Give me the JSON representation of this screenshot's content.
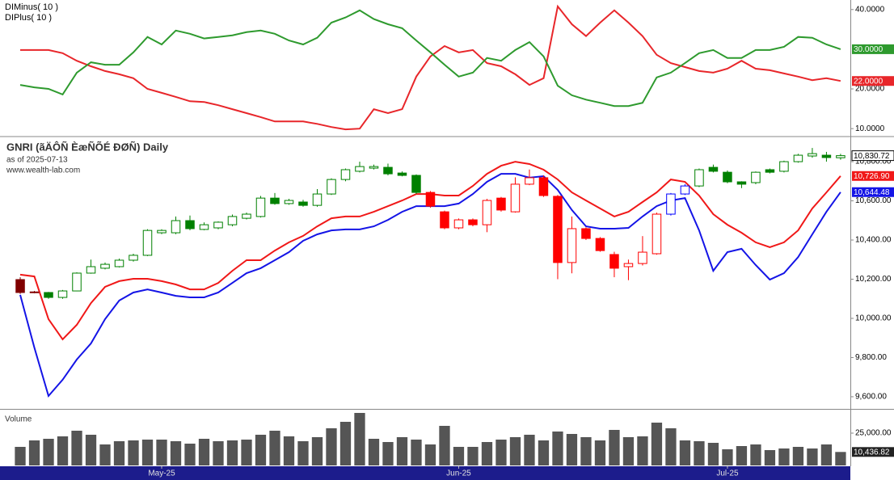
{
  "chart_data": [
    {
      "type": "line",
      "xlim": [
        -1.43,
        58.69
      ],
      "ylim": [
        8.2,
        42.4
      ],
      "yticks": [
        {
          "value": 10,
          "label": "10.0000"
        },
        {
          "value": 20,
          "label": "20.0000"
        },
        {
          "value": 40,
          "label": "40.0000"
        }
      ],
      "series": [
        {
          "name": "DIMinus( 10 )",
          "color": "#e8262a",
          "value_labels": {
            "58": "22.0000"
          },
          "values": [
            29.8,
            29.8,
            29.8,
            29.0,
            27.1,
            25.7,
            24.5,
            23.7,
            22.7,
            20.0,
            19.0,
            18.0,
            16.9,
            16.7,
            15.9,
            14.9,
            13.9,
            12.9,
            11.8,
            11.8,
            11.8,
            11.2,
            10.4,
            9.8,
            10.0,
            14.9,
            13.9,
            14.9,
            23.1,
            28.2,
            30.8,
            29.2,
            29.8,
            26.5,
            25.7,
            23.7,
            21.0,
            22.7,
            40.8,
            36.3,
            33.3,
            36.7,
            39.8,
            36.7,
            33.3,
            28.6,
            26.5,
            25.5,
            24.5,
            24.1,
            25.1,
            27.1,
            25.1,
            24.7,
            23.9,
            23.1,
            22.2,
            22.7,
            22.0
          ]
        },
        {
          "name": "DIPlus( 10 )",
          "color": "#2e9a2e",
          "value_labels": {
            "58": "30.0000"
          },
          "values": [
            21.0,
            20.4,
            20.0,
            18.6,
            24.1,
            26.7,
            26.1,
            26.1,
            29.2,
            33.1,
            31.2,
            34.7,
            33.9,
            32.7,
            33.1,
            33.5,
            34.3,
            34.7,
            33.9,
            32.2,
            31.2,
            32.9,
            36.7,
            38.0,
            39.8,
            37.6,
            36.3,
            35.3,
            32.2,
            29.2,
            26.1,
            23.1,
            24.1,
            27.8,
            27.1,
            29.8,
            31.8,
            28.2,
            20.8,
            18.4,
            17.3,
            16.5,
            15.7,
            15.7,
            16.5,
            22.9,
            24.1,
            26.5,
            29.0,
            29.8,
            27.8,
            27.8,
            29.8,
            29.8,
            30.6,
            33.1,
            32.9,
            31.2,
            30.0
          ]
        }
      ]
    },
    {
      "type": "candlestick",
      "title": "GNRI (ãÄÔÑ ÈæÑÕÉ ÐØÑ) Daily",
      "subtitle": "as of 2025-07-13",
      "source": "www.wealth-lab.com",
      "xlim": [
        -1.43,
        58.69
      ],
      "ylim": [
        9542,
        10924
      ],
      "yticks": [
        {
          "value": 9600,
          "label": "9,600.00"
        },
        {
          "value": 9800,
          "label": "9,800.00"
        },
        {
          "value": 10000,
          "label": "10,000.00"
        },
        {
          "value": 10200,
          "label": "10,200.00"
        },
        {
          "value": 10400,
          "label": "10,400.00"
        },
        {
          "value": 10600,
          "label": "10,600.00"
        },
        {
          "value": 10800,
          "label": "10,800.00"
        }
      ],
      "open": [
        10198,
        10135,
        10132,
        10107,
        10140,
        10231,
        10256,
        10264,
        10297,
        10322,
        10437,
        10437,
        10499,
        10454,
        10462,
        10478,
        10511,
        10520,
        10614,
        10586,
        10594,
        10577,
        10635,
        10709,
        10751,
        10767,
        10771,
        10742,
        10730,
        10643,
        10544,
        10462,
        10503,
        10478,
        10614,
        10544,
        10685,
        10718,
        10623,
        10285,
        10458,
        10408,
        10326,
        10264,
        10280,
        10330,
        10532,
        10635,
        10676,
        10771,
        10746,
        10697,
        10693,
        10759,
        10751,
        10800,
        10829,
        10833,
        10820
      ],
      "high": [
        10210,
        10140,
        10135,
        10145,
        10235,
        10300,
        10285,
        10305,
        10330,
        10455,
        10455,
        10520,
        10525,
        10490,
        10495,
        10530,
        10540,
        10625,
        10640,
        10610,
        10605,
        10660,
        10715,
        10765,
        10800,
        10785,
        10790,
        10750,
        10735,
        10650,
        10550,
        10510,
        10510,
        10610,
        10620,
        10720,
        10760,
        10730,
        10630,
        10520,
        10465,
        10415,
        10340,
        10300,
        10420,
        10540,
        10640,
        10685,
        10765,
        10785,
        10755,
        10700,
        10750,
        10765,
        10805,
        10840,
        10870,
        10850,
        10840
      ],
      "low": [
        10125,
        10128,
        10100,
        10100,
        10138,
        10228,
        10250,
        10260,
        10290,
        10318,
        10430,
        10430,
        10450,
        10450,
        10455,
        10470,
        10505,
        10515,
        10580,
        10580,
        10570,
        10570,
        10630,
        10700,
        10745,
        10760,
        10730,
        10725,
        10635,
        10565,
        10455,
        10455,
        10470,
        10440,
        10545,
        10540,
        10680,
        10620,
        10200,
        10230,
        10400,
        10340,
        10210,
        10195,
        10270,
        10325,
        10525,
        10630,
        10670,
        10745,
        10690,
        10665,
        10685,
        10740,
        10745,
        10795,
        10820,
        10800,
        10810
      ],
      "close": [
        10132,
        10132,
        10107,
        10140,
        10231,
        10264,
        10276,
        10297,
        10322,
        10449,
        10449,
        10499,
        10458,
        10478,
        10491,
        10520,
        10532,
        10614,
        10586,
        10602,
        10577,
        10635,
        10709,
        10759,
        10775,
        10775,
        10738,
        10730,
        10643,
        10573,
        10462,
        10503,
        10478,
        10602,
        10553,
        10685,
        10718,
        10627,
        10285,
        10458,
        10408,
        10346,
        10256,
        10280,
        10338,
        10532,
        10635,
        10676,
        10759,
        10751,
        10697,
        10685,
        10746,
        10746,
        10800,
        10833,
        10841,
        10821,
        10830.72
      ],
      "colors": [
        "#800000",
        "#800000",
        "#008000",
        "#008000",
        "#008000",
        "#008000",
        "#008000",
        "#008000",
        "#008000",
        "#008000",
        "#008000",
        "#008000",
        "#008000",
        "#008000",
        "#008000",
        "#008000",
        "#008000",
        "#008000",
        "#008000",
        "#008000",
        "#008000",
        "#008000",
        "#008000",
        "#008000",
        "#008000",
        "#008000",
        "#008000",
        "#008000",
        "#008000",
        "#ff0000",
        "#ff0000",
        "#ff0000",
        "#ff0000",
        "#ff0000",
        "#ff0000",
        "#ff0000",
        "#ff0000",
        "#ff0000",
        "#ff0000",
        "#ff0000",
        "#ff0000",
        "#ff0000",
        "#ff0000",
        "#ff0000",
        "#ff0000",
        "#ff0000",
        "#0000ff",
        "#0000ff",
        "#008000",
        "#008000",
        "#008000",
        "#008000",
        "#008000",
        "#008000",
        "#008000",
        "#008000",
        "#008000",
        "#008000",
        "#008000"
      ],
      "value_labels": {
        "58": "10,830.72"
      },
      "series": [
        {
          "color": "#f01818",
          "value_labels": {
            "58": "10,726.90"
          },
          "values": [
            10223,
            10214,
            9996,
            9893,
            9967,
            10078,
            10161,
            10190,
            10202,
            10202,
            10190,
            10173,
            10148,
            10148,
            10181,
            10243,
            10297,
            10297,
            10346,
            10388,
            10421,
            10470,
            10511,
            10520,
            10520,
            10544,
            10573,
            10602,
            10635,
            10635,
            10627,
            10627,
            10676,
            10738,
            10779,
            10800,
            10788,
            10759,
            10709,
            10643,
            10602,
            10561,
            10520,
            10544,
            10594,
            10643,
            10709,
            10697,
            10627,
            10532,
            10478,
            10437,
            10388,
            10363,
            10388,
            10449,
            10561,
            10643,
            10726.9
          ]
        },
        {
          "color": "#1414e6",
          "value_labels": {
            "58": "10,644.48"
          },
          "values": [
            10120,
            9851,
            9604,
            9687,
            9790,
            9872,
            9996,
            10091,
            10132,
            10148,
            10132,
            10115,
            10107,
            10107,
            10132,
            10181,
            10231,
            10256,
            10297,
            10338,
            10396,
            10429,
            10449,
            10454,
            10454,
            10470,
            10503,
            10544,
            10573,
            10573,
            10573,
            10586,
            10635,
            10697,
            10738,
            10738,
            10718,
            10726,
            10656,
            10553,
            10470,
            10458,
            10458,
            10462,
            10520,
            10573,
            10602,
            10614,
            10449,
            10243,
            10338,
            10355,
            10272,
            10198,
            10231,
            10313,
            10429,
            10544,
            10644.48
          ]
        }
      ]
    },
    {
      "type": "bar",
      "title": "Volume",
      "color": "#555555",
      "xlim": [
        -1.43,
        58.69
      ],
      "ylim": [
        0,
        42500
      ],
      "yticks": [
        {
          "value": 25000,
          "label": "25,000.00"
        }
      ],
      "xticks": [
        {
          "value": 10,
          "label": "May-25"
        },
        {
          "value": 31,
          "label": "Jun-25"
        },
        {
          "value": 50,
          "label": "Jul-25"
        }
      ],
      "value_labels": {
        "58": "10,436.82"
      },
      "values": [
        14375,
        19375,
        20625,
        22500,
        26875,
        23750,
        16250,
        18750,
        19375,
        20000,
        20000,
        18750,
        16875,
        20625,
        18750,
        19375,
        20000,
        23750,
        26875,
        22500,
        18750,
        21875,
        28750,
        33750,
        40625,
        20625,
        18125,
        21875,
        20000,
        16250,
        30625,
        14375,
        14375,
        18125,
        20000,
        21875,
        23750,
        19375,
        26250,
        24375,
        21875,
        19375,
        27500,
        21875,
        22500,
        33125,
        28750,
        19375,
        18750,
        17500,
        12500,
        15000,
        16250,
        11875,
        13125,
        14375,
        13125,
        16250,
        10436.82
      ]
    }
  ]
}
